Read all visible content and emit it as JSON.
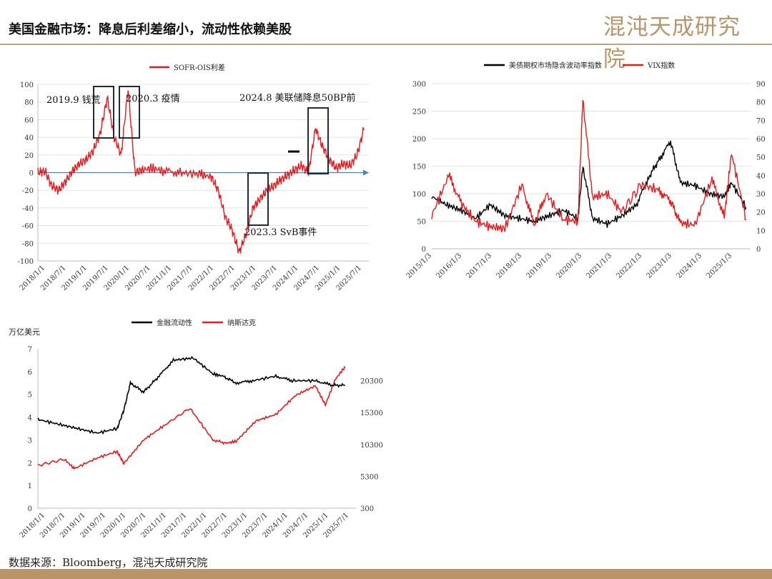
{
  "page": {
    "title": "美国金融市场：降息后利差缩小，流动性依赖美股",
    "brand": "混沌天成研究院",
    "source": "数据来源：Bloomberg，混沌天成研究院"
  },
  "chart_data": [
    {
      "type": "line",
      "legend": [
        "SOFR-OIS利差"
      ],
      "colors": {
        "series": "#e8191b",
        "axis_arrow": "#4a7fc0",
        "box": "#1f2a3a"
      },
      "ylim": [
        -100,
        100
      ],
      "yticks": [
        "100",
        "80",
        "60",
        "40",
        "20",
        "0",
        "-20",
        "-40",
        "-60",
        "-80",
        "-100"
      ],
      "xticks": [
        "2018/1/1",
        "2018/7/1",
        "2019/1/1",
        "2019/7/1",
        "2020/1/1",
        "2020/7/1",
        "2021/1/1",
        "2021/7/1",
        "2022/1/1",
        "2022/7/1",
        "2023/1/1",
        "2023/7/1",
        "2024/1/1",
        "2024/7/1",
        "2025/1/1",
        "2025/7/1"
      ],
      "annotations": [
        "2019.9 钱荒",
        "2020.3 疫情",
        "2024.8 美联储降息50BP前",
        "2023.3 SvB事件"
      ],
      "series": [
        {
          "name": "SOFR-OIS利差",
          "x": [
            "2018/1",
            "2018/3",
            "2018/5",
            "2018/7",
            "2018/9",
            "2018/11",
            "2019/1",
            "2019/3",
            "2019/5",
            "2019/7",
            "2019/9",
            "2019/11",
            "2020/1",
            "2020/3",
            "2020/5",
            "2020/7",
            "2020/10",
            "2021/1",
            "2021/6",
            "2021/12",
            "2022/3",
            "2022/5",
            "2022/7",
            "2022/9",
            "2022/11",
            "2023/1",
            "2023/3",
            "2023/5",
            "2023/7",
            "2023/9",
            "2023/11",
            "2024/1",
            "2024/3",
            "2024/5",
            "2024/7",
            "2024/9",
            "2024/11",
            "2025/1",
            "2025/3",
            "2025/5",
            "2025/7",
            "2025/9",
            "2025/11"
          ],
          "values": [
            0,
            2,
            -15,
            -20,
            -10,
            2,
            10,
            15,
            25,
            45,
            85,
            40,
            20,
            95,
            0,
            3,
            5,
            2,
            0,
            -2,
            -5,
            -20,
            -50,
            -65,
            -90,
            -70,
            -40,
            -30,
            -20,
            -15,
            -8,
            -3,
            3,
            8,
            0,
            50,
            30,
            15,
            5,
            10,
            8,
            20,
            50
          ]
        }
      ]
    },
    {
      "type": "line",
      "legend": [
        "美债期权市场隐含波动率指数",
        "VIX指数"
      ],
      "ylim_left": [
        0,
        300
      ],
      "ylim_right": [
        0,
        90
      ],
      "yticks_left": [
        "300",
        "250",
        "200",
        "150",
        "100",
        "50",
        "0"
      ],
      "yticks_right": [
        "90",
        "80",
        "70",
        "60",
        "50",
        "40",
        "30",
        "20",
        "10",
        "0"
      ],
      "xticks": [
        "2015/1/3",
        "2016/1/3",
        "2017/1/3",
        "2018/1/3",
        "2019/1/3",
        "2020/1/3",
        "2021/1/3",
        "2022/1/3",
        "2023/1/3",
        "2024/1/3",
        "2025/1/3"
      ],
      "colors": {
        "series_0": "#000000",
        "series_1": "#e8191b"
      },
      "series": [
        {
          "name": "美债期权市场隐含波动率指数",
          "axis": "left",
          "x": [
            "2015/1",
            "2015/7",
            "2016/1",
            "2016/7",
            "2017/1",
            "2017/7",
            "2018/1",
            "2018/7",
            "2019/1",
            "2019/7",
            "2020/1",
            "2020/3",
            "2020/7",
            "2021/1",
            "2021/7",
            "2022/1",
            "2022/6",
            "2022/10",
            "2023/3",
            "2023/7",
            "2024/1",
            "2024/7",
            "2025/1",
            "2025/4",
            "2025/10"
          ],
          "values": [
            95,
            80,
            70,
            55,
            80,
            60,
            55,
            50,
            60,
            70,
            55,
            150,
            55,
            45,
            60,
            80,
            130,
            160,
            195,
            120,
            115,
            100,
            95,
            120,
            75
          ]
        },
        {
          "name": "VIX指数",
          "axis": "right",
          "x": [
            "2015/1",
            "2015/8",
            "2016/1",
            "2016/7",
            "2017/1",
            "2017/7",
            "2018/2",
            "2018/7",
            "2018/12",
            "2019/7",
            "2020/1",
            "2020/3",
            "2020/7",
            "2021/1",
            "2021/7",
            "2022/3",
            "2022/10",
            "2023/3",
            "2023/7",
            "2024/1",
            "2024/8",
            "2025/1",
            "2025/4",
            "2025/10"
          ],
          "values": [
            18,
            40,
            25,
            15,
            12,
            11,
            35,
            13,
            30,
            16,
            15,
            82,
            28,
            30,
            20,
            35,
            32,
            26,
            14,
            13,
            38,
            17,
            52,
            16
          ]
        }
      ]
    },
    {
      "type": "line",
      "legend": [
        "金融流动性",
        "纳斯达克"
      ],
      "ylabel": "万亿美元",
      "ylim_left": [
        0,
        7
      ],
      "ylim_right": [
        300,
        25300
      ],
      "yticks_left": [
        "7",
        "6",
        "5",
        "4",
        "3",
        "2",
        "1",
        "0"
      ],
      "yticks_right": [
        "20300",
        "15300",
        "10300",
        "5300",
        "300"
      ],
      "xticks": [
        "2018/1/1",
        "2018/7/1",
        "2019/1/1",
        "2019/7/1",
        "2020/1/1",
        "2020/7/1",
        "2021/1/1",
        "2021/7/1",
        "2022/1/1",
        "2022/7/1",
        "2023/1/1",
        "2023/7/1",
        "2024/1/1",
        "2024/7/1",
        "2025/1/1",
        "2025/7/1"
      ],
      "colors": {
        "series_0": "#000000",
        "series_1": "#e8191b"
      },
      "series": [
        {
          "name": "金融流动性",
          "axis": "left",
          "x": [
            "2018/1",
            "2018/7",
            "2019/1",
            "2019/7",
            "2020/1",
            "2020/3",
            "2020/5",
            "2020/9",
            "2021/1",
            "2021/6",
            "2021/12",
            "2022/6",
            "2022/9",
            "2023/1",
            "2023/6",
            "2024/1",
            "2024/6",
            "2025/1",
            "2025/6",
            "2025/10"
          ],
          "values": [
            3.9,
            3.7,
            3.5,
            3.3,
            3.5,
            4.3,
            5.5,
            5.1,
            5.7,
            6.5,
            6.6,
            5.9,
            5.8,
            5.5,
            5.6,
            5.8,
            5.6,
            5.6,
            5.4,
            5.4
          ]
        },
        {
          "name": "纳斯达克",
          "axis": "right",
          "x": [
            "2018/1",
            "2018/9",
            "2018/12",
            "2019/7",
            "2020/1",
            "2020/3",
            "2020/9",
            "2021/3",
            "2021/11",
            "2022/6",
            "2022/10",
            "2023/1",
            "2023/7",
            "2024/1",
            "2024/7",
            "2025/1",
            "2025/4",
            "2025/7",
            "2025/10"
          ],
          "values": [
            7000,
            8000,
            6500,
            8200,
            9200,
            7300,
            11000,
            13200,
            16000,
            11000,
            10500,
            10800,
            14000,
            15000,
            18000,
            19500,
            16500,
            20500,
            22500
          ]
        }
      ]
    }
  ]
}
